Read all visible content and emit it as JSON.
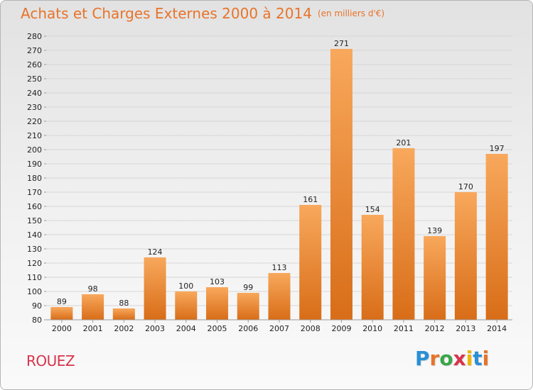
{
  "header": {
    "title": "Achats et Charges Externes 2000 à 2014",
    "subtitle": "(en milliers d'€)"
  },
  "footer": {
    "place": "ROUEZ",
    "logo_text": "Proxiti",
    "logo_colors": [
      "#2a8fd6",
      "#e8732a",
      "#3aa64a",
      "#d8334a",
      "#f0b400",
      "#2a8fd6",
      "#e8732a"
    ]
  },
  "colors": {
    "bar_top": "#f8a85c",
    "bar_bottom": "#d86d18",
    "grid": "#d6d6d6",
    "axis_text": "#222222",
    "accent": "#e8732a"
  },
  "chart_data": {
    "type": "bar",
    "categories": [
      "2000",
      "2001",
      "2002",
      "2003",
      "2004",
      "2005",
      "2006",
      "2007",
      "2008",
      "2009",
      "2010",
      "2011",
      "2012",
      "2013",
      "2014"
    ],
    "values": [
      89,
      98,
      88,
      124,
      100,
      103,
      99,
      113,
      161,
      271,
      154,
      201,
      139,
      170,
      197
    ],
    "title": "Achats et Charges Externes 2000 à 2014",
    "subtitle": "(en milliers d'€)",
    "xlabel": "",
    "ylabel": "",
    "ylim": [
      80,
      280
    ],
    "yticks": [
      80,
      90,
      100,
      110,
      120,
      130,
      140,
      150,
      160,
      170,
      180,
      190,
      200,
      210,
      220,
      230,
      240,
      250,
      260,
      270,
      280
    ],
    "grid": true,
    "data_labels": true
  }
}
